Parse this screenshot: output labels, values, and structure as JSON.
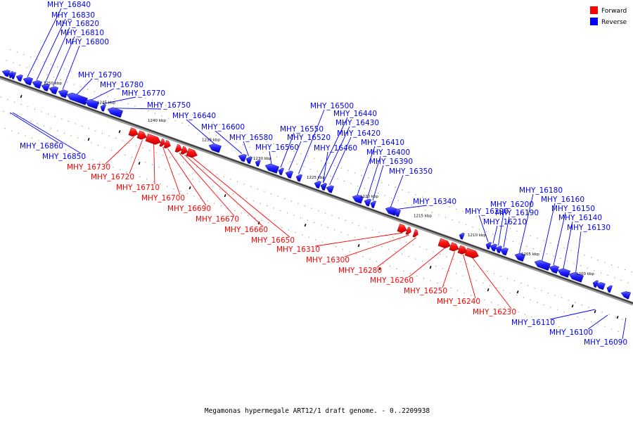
{
  "legend": {
    "forward": {
      "label": "Forward",
      "color": "#ff0000"
    },
    "reverse": {
      "label": "Reverse",
      "color": "#0000ff"
    }
  },
  "caption": "Megamonas hypermegale ART12/1 draft genome. - 0..2209938",
  "ruler_labels": [
    "1250 kbp",
    "1245 kbp",
    "1240 kbp",
    "1235 kbp",
    "1230 kbp",
    "1225 kbp",
    "1220 kbp",
    "1215 kbp",
    "1210 kbp",
    "1205 kbp",
    "1200 kbp"
  ],
  "genes": [
    {
      "name": "MHY_16840",
      "strand": "reverse"
    },
    {
      "name": "MHY_16830",
      "strand": "reverse"
    },
    {
      "name": "MHY_16820",
      "strand": "reverse"
    },
    {
      "name": "MHY_16810",
      "strand": "reverse"
    },
    {
      "name": "MHY_16800",
      "strand": "reverse"
    },
    {
      "name": "MHY_16790",
      "strand": "reverse"
    },
    {
      "name": "MHY_16780",
      "strand": "reverse"
    },
    {
      "name": "MHY_16770",
      "strand": "reverse"
    },
    {
      "name": "MHY_16750",
      "strand": "reverse"
    },
    {
      "name": "MHY_16640",
      "strand": "reverse"
    },
    {
      "name": "MHY_16600",
      "strand": "reverse"
    },
    {
      "name": "MHY_16580",
      "strand": "reverse"
    },
    {
      "name": "MHY_16560",
      "strand": "reverse"
    },
    {
      "name": "MHY_16550",
      "strand": "reverse"
    },
    {
      "name": "MHY_16520",
      "strand": "reverse"
    },
    {
      "name": "MHY_16500",
      "strand": "reverse"
    },
    {
      "name": "MHY_16440",
      "strand": "reverse"
    },
    {
      "name": "MHY_16430",
      "strand": "reverse"
    },
    {
      "name": "MHY_16420",
      "strand": "reverse"
    },
    {
      "name": "MHY_16460",
      "strand": "reverse"
    },
    {
      "name": "MHY_16410",
      "strand": "reverse"
    },
    {
      "name": "MHY_16400",
      "strand": "reverse"
    },
    {
      "name": "MHY_16390",
      "strand": "reverse"
    },
    {
      "name": "MHY_16350",
      "strand": "reverse"
    },
    {
      "name": "MHY_16340",
      "strand": "reverse"
    },
    {
      "name": "MHY_16220",
      "strand": "reverse"
    },
    {
      "name": "MHY_16210",
      "strand": "reverse"
    },
    {
      "name": "MHY_16200",
      "strand": "reverse"
    },
    {
      "name": "MHY_16190",
      "strand": "reverse"
    },
    {
      "name": "MHY_16180",
      "strand": "reverse"
    },
    {
      "name": "MHY_16160",
      "strand": "reverse"
    },
    {
      "name": "MHY_16150",
      "strand": "reverse"
    },
    {
      "name": "MHY_16140",
      "strand": "reverse"
    },
    {
      "name": "MHY_16130",
      "strand": "reverse"
    },
    {
      "name": "MHY_16860",
      "strand": "reverse"
    },
    {
      "name": "MHY_16850",
      "strand": "reverse"
    },
    {
      "name": "MHY_16110",
      "strand": "reverse"
    },
    {
      "name": "MHY_16100",
      "strand": "reverse"
    },
    {
      "name": "MHY_16090",
      "strand": "reverse"
    },
    {
      "name": "MHY_16730",
      "strand": "forward"
    },
    {
      "name": "MHY_16720",
      "strand": "forward"
    },
    {
      "name": "MHY_16710",
      "strand": "forward"
    },
    {
      "name": "MHY_16700",
      "strand": "forward"
    },
    {
      "name": "MHY_16690",
      "strand": "forward"
    },
    {
      "name": "MHY_16670",
      "strand": "forward"
    },
    {
      "name": "MHY_16660",
      "strand": "forward"
    },
    {
      "name": "MHY_16650",
      "strand": "forward"
    },
    {
      "name": "MHY_16310",
      "strand": "forward"
    },
    {
      "name": "MHY_16300",
      "strand": "forward"
    },
    {
      "name": "MHY_16280",
      "strand": "forward"
    },
    {
      "name": "MHY_16260",
      "strand": "forward"
    },
    {
      "name": "MHY_16250",
      "strand": "forward"
    },
    {
      "name": "MHY_16240",
      "strand": "forward"
    },
    {
      "name": "MHY_16230",
      "strand": "forward"
    }
  ]
}
